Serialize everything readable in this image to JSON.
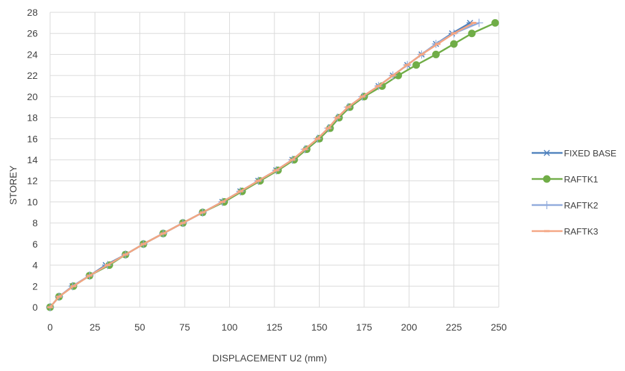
{
  "chart_data": {
    "type": "line",
    "title": "",
    "xlabel": "DISPLACEMENT  U2 (mm)",
    "ylabel": "STOREY",
    "xlim": [
      0,
      250
    ],
    "ylim": [
      0,
      28
    ],
    "x_ticks": [
      0,
      25,
      50,
      75,
      100,
      125,
      150,
      175,
      200,
      225,
      250
    ],
    "y_ticks": [
      0,
      2,
      4,
      6,
      8,
      10,
      12,
      14,
      16,
      18,
      20,
      22,
      24,
      26,
      28
    ],
    "grid": "vertical and horizontal",
    "legend_position": "right",
    "y": [
      0,
      1,
      2,
      3,
      4,
      5,
      6,
      7,
      8,
      9,
      10,
      11,
      12,
      13,
      14,
      15,
      16,
      17,
      18,
      19,
      20,
      21,
      22,
      23,
      24,
      25,
      26,
      27
    ],
    "series": [
      {
        "name": "FIXED BASE",
        "marker": "asterisk",
        "color": "#4f81bd",
        "x": [
          0,
          5,
          12.5,
          22,
          31,
          42,
          52,
          63,
          74,
          85,
          96,
          106,
          116,
          126,
          135,
          143,
          150,
          156,
          161,
          167,
          175,
          183,
          191,
          199,
          207,
          215,
          224,
          234
        ]
      },
      {
        "name": "RAFTK1",
        "marker": "circle",
        "color": "#70ad47",
        "x": [
          0,
          5,
          13,
          22,
          33,
          42,
          52,
          63,
          74,
          85,
          97,
          107,
          117,
          127,
          136,
          143,
          150,
          156,
          161,
          167,
          175,
          185,
          194,
          204,
          215,
          225,
          235,
          248
        ]
      },
      {
        "name": "RAFTK2",
        "marker": "plus",
        "color": "#8faadc",
        "x": [
          0,
          5,
          12.5,
          22,
          32,
          42,
          52,
          63,
          74,
          85,
          96,
          106,
          116,
          126,
          135,
          142,
          149,
          155,
          160,
          166,
          174,
          183,
          191,
          199,
          207,
          215,
          225,
          239
        ]
      },
      {
        "name": "RAFTK3",
        "marker": "dash",
        "color": "#f4a582",
        "x": [
          0,
          5,
          13,
          22,
          32,
          42,
          52,
          63,
          74,
          85,
          96,
          106,
          116,
          126,
          135,
          142,
          149,
          155,
          160,
          166,
          174,
          183,
          191,
          199,
          207,
          216,
          225,
          236
        ]
      }
    ]
  }
}
